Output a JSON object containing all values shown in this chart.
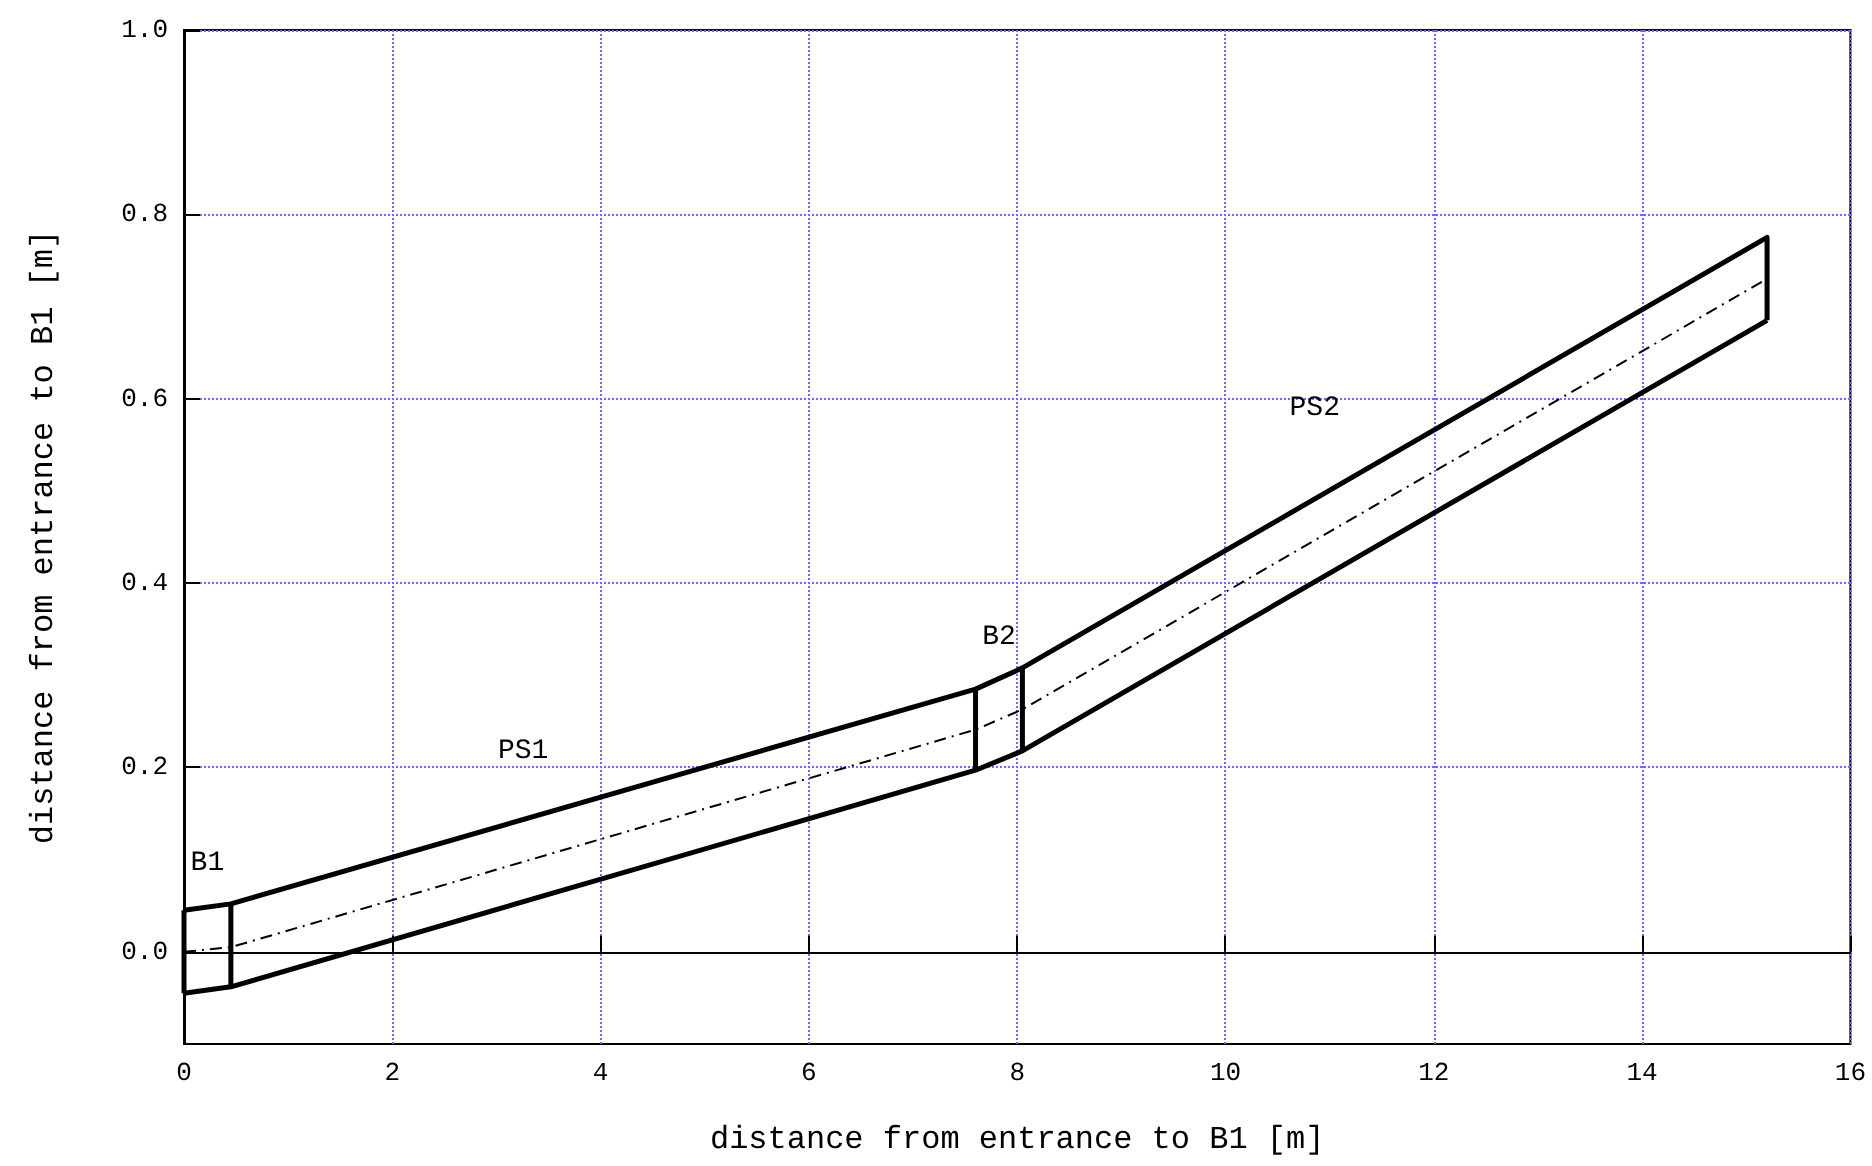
{
  "chart_data": {
    "type": "line",
    "xlabel": "distance from entrance to B1 [m]",
    "ylabel": "distance from entrance to B1 [m]",
    "series": [
      {
        "color": "#000000",
        "line_style": "solid",
        "x": [
          0,
          0.45,
          7.6,
          8.05,
          15.2,
          15.2
        ],
        "values": [
          0.045,
          0.052,
          0.285,
          0.308,
          0.775,
          0.685
        ]
      },
      {
        "color": "#000000",
        "line_style": "solid",
        "x": [
          0,
          0.45,
          7.6,
          8.05,
          15.2
        ],
        "values": [
          -0.045,
          -0.038,
          0.197,
          0.218,
          0.685
        ]
      },
      {
        "color": "#000000",
        "line_style": "dashed",
        "x": [
          0,
          0.45,
          7.6,
          8.05,
          15.2
        ],
        "values": [
          0,
          0.005,
          0.241,
          0.263,
          0.73
        ]
      }
    ],
    "annotations": [
      {
        "text": "B1",
        "x": 0.225,
        "y": 0.052
      },
      "PS1",
      {
        "text": "B2",
        "x": 7.825,
        "y": 0.297
      },
      "PS2"
    ],
    "xlim": [
      0,
      16
    ],
    "xticks": [
      0,
      2,
      4,
      6,
      8,
      10,
      12,
      14,
      16
    ],
    "ylim": [
      -0.1,
      1.0
    ],
    "yticks": [
      {
        "value": 0,
        "label": "0.0"
      },
      0.2,
      0.4,
      0.6,
      0.8,
      {
        "value": 1.0,
        "label": "1.0"
      }
    ],
    "grid": true,
    "marker": "none"
  }
}
